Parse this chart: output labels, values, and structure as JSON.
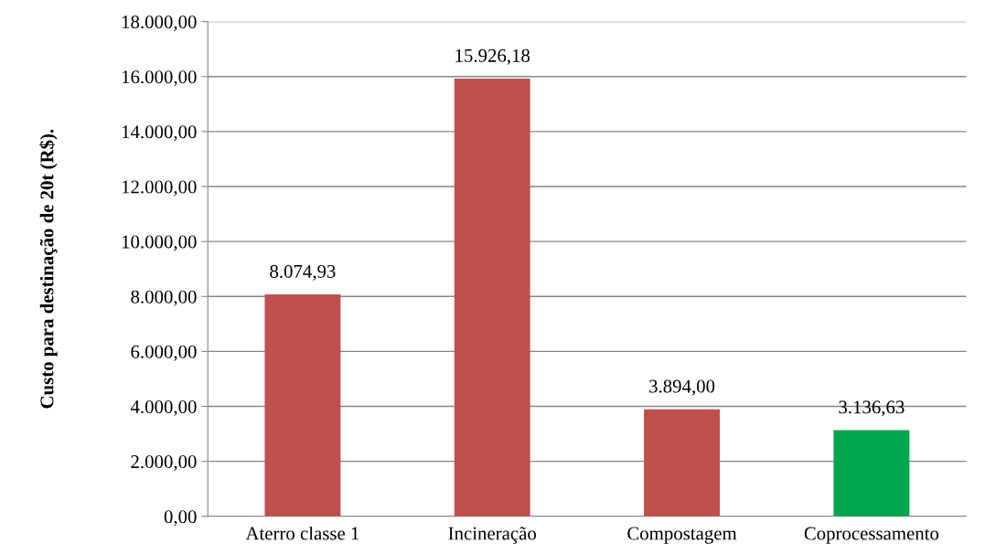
{
  "chart_data": {
    "type": "bar",
    "ylabel": "Custo para destinação de 20t (R$).",
    "categories": [
      "Aterro classe 1",
      "Incineração",
      "Compostagem",
      "Coprocessamento"
    ],
    "values": [
      8074.93,
      15926.18,
      3894.0,
      3136.63
    ],
    "colors": [
      "#c0504d",
      "#c0504d",
      "#c0504d",
      "#00a550"
    ],
    "value_labels": [
      "8.074,93",
      "15.926,18",
      "3.894,00",
      "3.136,63"
    ],
    "ylim": [
      0,
      18000
    ],
    "yticks": [
      {
        "value": 0,
        "label": "0,00"
      },
      {
        "value": 2000,
        "label": "2.000,00"
      },
      {
        "value": 4000,
        "label": "4.000,00"
      },
      {
        "value": 6000,
        "label": "6.000,00"
      },
      {
        "value": 8000,
        "label": "8.000,00"
      },
      {
        "value": 10000,
        "label": "10.000,00"
      },
      {
        "value": 12000,
        "label": "12.000,00"
      },
      {
        "value": 14000,
        "label": "14.000,00"
      },
      {
        "value": 16000,
        "label": "16.000,00"
      },
      {
        "value": 18000,
        "label": "18.000,00"
      }
    ],
    "grid": "y",
    "legend": false
  }
}
